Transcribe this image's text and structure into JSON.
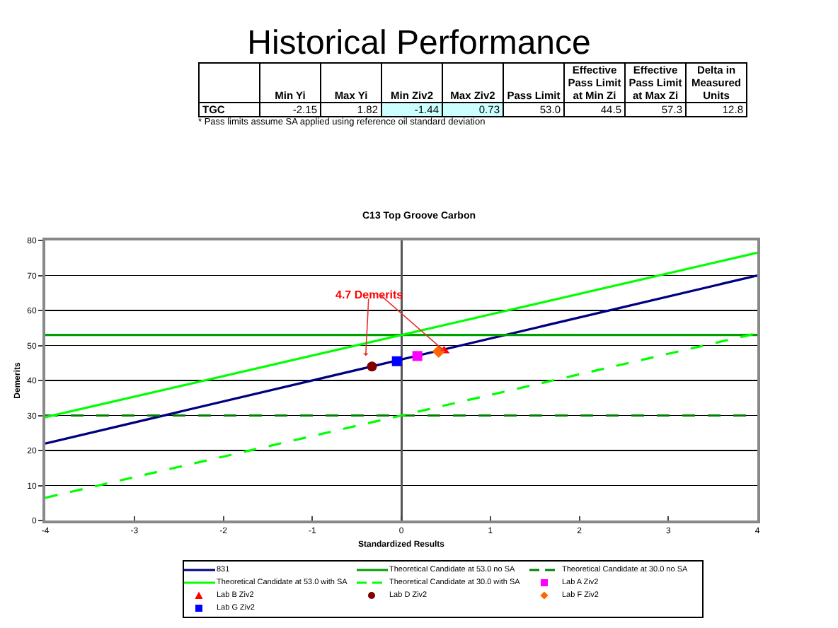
{
  "chart_data": [
    {
      "type": "other",
      "title": "Historical Performance",
      "categories": [
        "Min Yi",
        "Max Yi",
        "Min Ziv2",
        "Max Ziv2",
        "Pass Limit",
        "Effective Pass Limit at Min Zi",
        "Effective Pass Limit at Max Zi",
        "Delta in Measured Units"
      ],
      "y_categories": [
        "TGC"
      ],
      "values": [
        -2.15,
        1.82,
        -1.44,
        0.73,
        53.0,
        44.5,
        57.3,
        12.8
      ],
      "value_labels": [
        "-2.15",
        "1.82",
        "-1.44",
        "0.73",
        "53.0",
        "44.5",
        "57.3",
        "12.8"
      ],
      "colors": [
        "#ffffff",
        "#ffffff",
        "#ccffff",
        "#ccffff",
        "#ffffff",
        "#ffffff",
        "#ffffff",
        "#ffffff"
      ],
      "annotations": [
        "* Pass limits assume SA applied using reference oil standard deviation"
      ]
    },
    {
      "type": "line",
      "title": "C13 Top Groove Carbon",
      "xlabel": "Standardized Results",
      "ylabel": "Demerits",
      "xlim": [
        -4,
        4
      ],
      "xticks": [
        -4,
        -3,
        -2,
        -1,
        0,
        1,
        2,
        3,
        4
      ],
      "ylim": [
        0,
        80
      ],
      "yticks": [
        0,
        10,
        20,
        30,
        40,
        50,
        60,
        70,
        80
      ],
      "grid": "y",
      "legend": "bottom",
      "series": [
        {
          "name": "831",
          "type": "line",
          "color": "#000080",
          "x": [
            -4,
            4
          ],
          "values": [
            22,
            70
          ],
          "marker": "none",
          "line_style": "solid"
        },
        {
          "name": "Theoretical Candidate at 53.0 no SA",
          "type": "line",
          "color": "#00a000",
          "x": [
            -4,
            4
          ],
          "values": [
            53,
            53
          ],
          "marker": "none",
          "line_style": "solid"
        },
        {
          "name": "Theoretical Candidate at 30.0 no SA",
          "type": "line",
          "color": "#008000",
          "x": [
            -4,
            4
          ],
          "values": [
            30,
            30
          ],
          "marker": "none",
          "line_style": "dashed"
        },
        {
          "name": "Theoretical Candidate at 53.0 with SA",
          "type": "line",
          "color": "#00ff00",
          "x": [
            -4,
            4
          ],
          "values": [
            29.5,
            76.5
          ],
          "marker": "none",
          "line_style": "solid"
        },
        {
          "name": "Theoretical Candidate at 30.0 with SA",
          "type": "line",
          "color": "#00ff00",
          "x": [
            -4,
            4
          ],
          "values": [
            6.5,
            53.5
          ],
          "marker": "none",
          "line_style": "dashed"
        },
        {
          "name": "Lab A Ziv2",
          "type": "scatter",
          "color": "#ff00ff",
          "x": [
            0.18
          ],
          "values": [
            47
          ],
          "marker": "square"
        },
        {
          "name": "Lab B Ziv2",
          "type": "scatter",
          "color": "#ff0000",
          "x": [
            0.48
          ],
          "values": [
            48.5
          ],
          "marker": "triangle"
        },
        {
          "name": "Lab D Ziv2",
          "type": "scatter",
          "color": "#800000",
          "x": [
            -0.33
          ],
          "values": [
            44
          ],
          "marker": "circle"
        },
        {
          "name": "Lab F Ziv2",
          "type": "scatter",
          "color": "#ff6600",
          "x": [
            0.42
          ],
          "values": [
            48.3
          ],
          "marker": "diamond"
        },
        {
          "name": "Lab G Ziv2",
          "type": "scatter",
          "color": "#0000ff",
          "x": [
            -0.05
          ],
          "values": [
            45.5
          ],
          "marker": "square"
        }
      ],
      "annotations": [
        {
          "text": "4.7 Demerits",
          "x": -0.4,
          "y": 47
        }
      ]
    }
  ]
}
